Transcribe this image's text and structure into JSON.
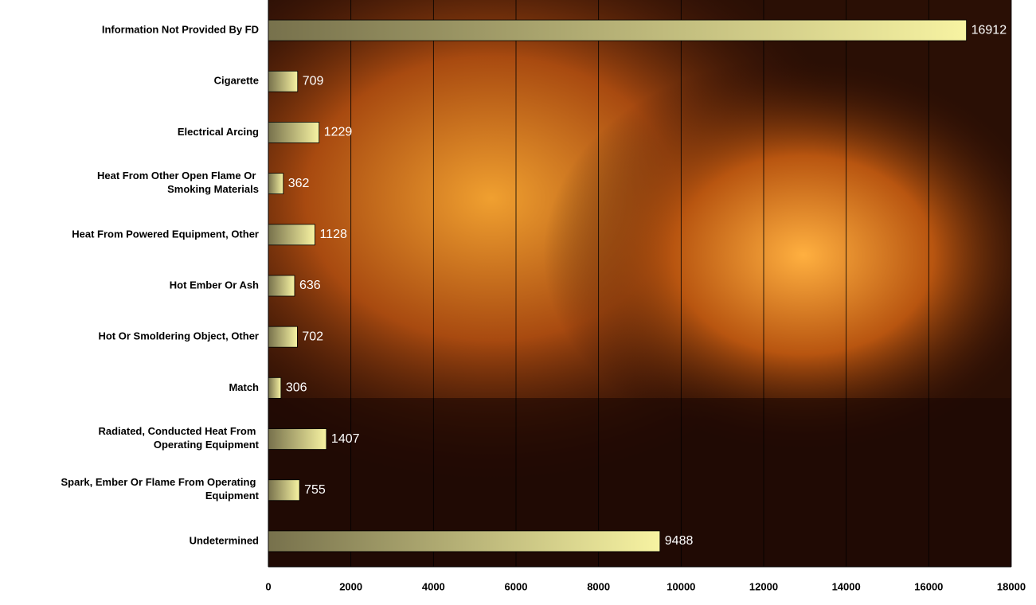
{
  "chart_data": {
    "type": "bar",
    "orientation": "horizontal",
    "categories": [
      "Information Not Provided By FD",
      "Cigarette",
      "Electrical Arcing",
      "Heat From Other Open Flame Or Smoking Materials",
      "Heat From Powered Equipment, Other",
      "Hot Ember Or Ash",
      "Hot Or Smoldering Object, Other",
      "Match",
      "Radiated, Conducted Heat From Operating Equipment",
      "Spark, Ember Or Flame From Operating Equipment",
      "Undetermined"
    ],
    "values": [
      16912,
      709,
      1229,
      362,
      1128,
      636,
      702,
      306,
      1407,
      755,
      9488
    ],
    "color": "#f5f09c",
    "xlim": [
      0,
      18000
    ],
    "xticks": [
      0,
      2000,
      4000,
      6000,
      8000,
      10000,
      12000,
      14000,
      16000,
      18000
    ],
    "grid": true
  }
}
